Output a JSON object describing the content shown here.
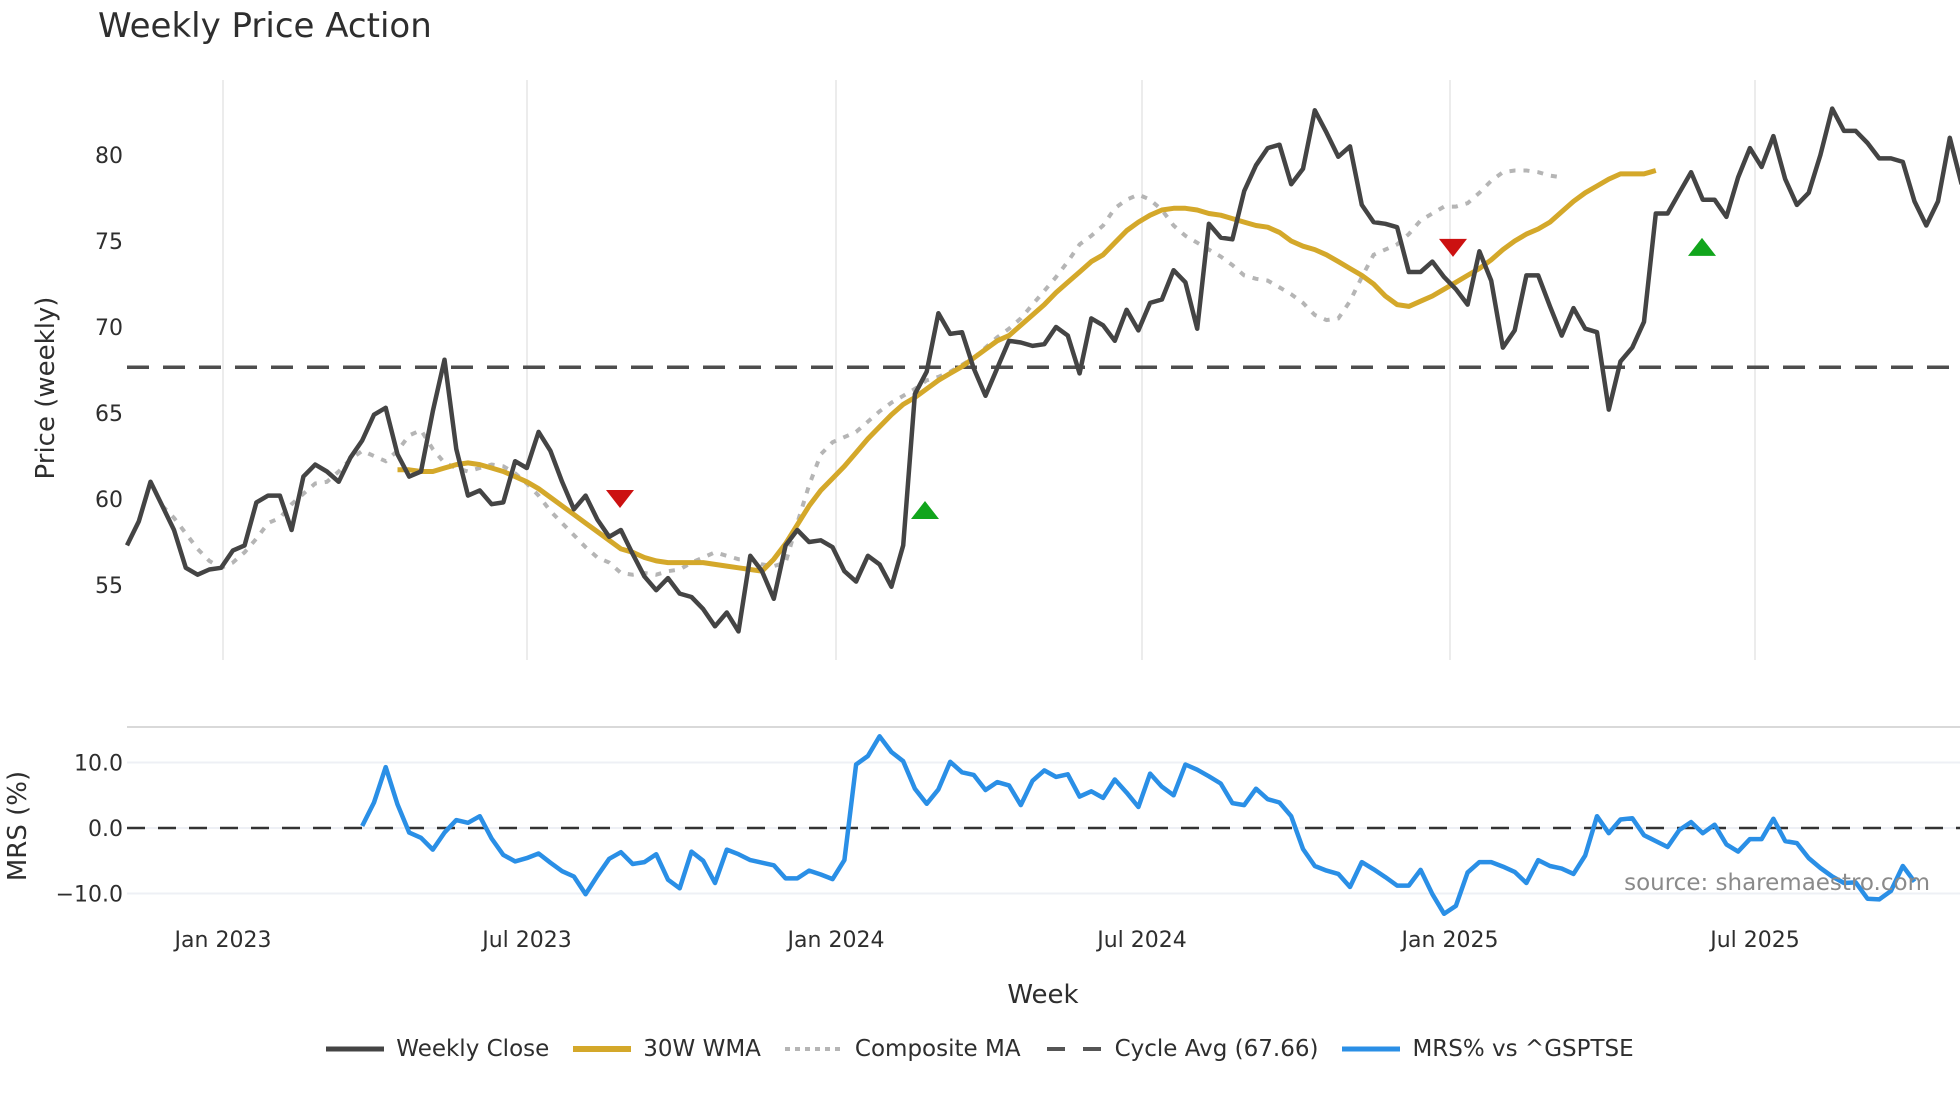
{
  "title": "Weekly Price Action",
  "watermark": "source: sharemaestro.com",
  "axes": {
    "price_ylabel": "Price (weekly)",
    "mrs_ylabel": "MRS (%)",
    "xlabel": "Week",
    "price_ticks": [
      "55",
      "60",
      "65",
      "70",
      "75",
      "80"
    ],
    "mrs_ticks": [
      "-10.0",
      "0.0",
      "10.0"
    ],
    "x_ticks": [
      "Jan 2023",
      "Jul 2023",
      "Jan 2024",
      "Jul 2024",
      "Jan 2025",
      "Jul 2025"
    ]
  },
  "legend": {
    "items": [
      {
        "label": "Weekly Close",
        "color": "#444444",
        "style": "solid"
      },
      {
        "label": "30W WMA",
        "color": "#d4a82a",
        "style": "solid"
      },
      {
        "label": "Composite MA",
        "color": "#b3b3b3",
        "style": "dotted"
      },
      {
        "label": "Cycle Avg (67.66)",
        "color": "#555555",
        "style": "dashed"
      },
      {
        "label": "MRS% vs ^GSPTSE",
        "color": "#2a8fe6",
        "style": "solid"
      }
    ]
  },
  "chart_data": [
    {
      "type": "line",
      "title": "Weekly Price Action",
      "xlabel": "Week",
      "ylabel": "Price (weekly)",
      "ylim": [
        51,
        84.5
      ],
      "x_tick_labels": [
        "Jan 2023",
        "Jul 2023",
        "Jan 2024",
        "Jul 2024",
        "Jan 2025",
        "Jul 2025"
      ],
      "y_tick_labels": [
        55,
        60,
        65,
        70,
        75,
        80
      ],
      "grid": "vertical",
      "legend_position": "bottom",
      "x_start": "2022-11 (approx)",
      "x_step": "1 week",
      "series": [
        {
          "name": "Weekly Close",
          "color": "#444444",
          "values": [
            57.3,
            58.7,
            61.0,
            59.6,
            58.2,
            56.0,
            55.6,
            55.9,
            56.0,
            57.0,
            57.3,
            59.8,
            60.2,
            60.2,
            58.2,
            61.3,
            62.0,
            61.6,
            61.0,
            62.4,
            63.4,
            64.9,
            65.3,
            62.6,
            61.3,
            61.6,
            65.1,
            68.1,
            62.9,
            60.2,
            60.5,
            59.7,
            59.8,
            62.2,
            61.8,
            63.9,
            62.8,
            61.0,
            59.4,
            60.2,
            58.8,
            57.8,
            58.2,
            56.8,
            55.5,
            54.7,
            55.4,
            54.5,
            54.3,
            53.6,
            52.6,
            53.4,
            52.3,
            56.7,
            55.8,
            54.2,
            57.3,
            58.2,
            57.5,
            57.6,
            57.2,
            55.8,
            55.2,
            56.7,
            56.2,
            54.9,
            57.3,
            66.1,
            67.4,
            70.8,
            69.6,
            69.7,
            67.6,
            66.0,
            67.6,
            69.2,
            69.1,
            68.9,
            69.0,
            70.0,
            69.5,
            67.3,
            70.5,
            70.1,
            69.2,
            71.0,
            69.8,
            71.4,
            71.6,
            73.3,
            72.6,
            69.9,
            76.0,
            75.2,
            75.1,
            77.9,
            79.4,
            80.4,
            80.6,
            78.3,
            79.2,
            82.6,
            81.3,
            79.9,
            80.5,
            77.1,
            76.1,
            76.0,
            75.8,
            73.2,
            73.2,
            73.8,
            72.9,
            72.2,
            71.3,
            74.4,
            72.7,
            68.8,
            69.8,
            73.0,
            73.0,
            71.2,
            69.5,
            71.1,
            69.9,
            69.7,
            65.2,
            68.0,
            68.8,
            70.3,
            76.6,
            76.6,
            77.8,
            79.0,
            77.4,
            77.4,
            76.4,
            78.7,
            80.4,
            79.3,
            81.1,
            78.6,
            77.1,
            77.8,
            80.0,
            82.7,
            81.4,
            81.4,
            80.7,
            79.8,
            79.8,
            79.6,
            77.3,
            75.9,
            77.3,
            81.0,
            78.3
          ]
        },
        {
          "name": "30W WMA",
          "color": "#d4a82a",
          "start_index": 23,
          "values": [
            61.7,
            61.7,
            61.6,
            61.6,
            61.8,
            62.0,
            62.1,
            62.0,
            61.8,
            61.6,
            61.3,
            61.0,
            60.6,
            60.1,
            59.6,
            59.1,
            58.6,
            58.1,
            57.6,
            57.1,
            56.9,
            56.6,
            56.4,
            56.3,
            56.3,
            56.3,
            56.3,
            56.2,
            56.1,
            56.0,
            55.9,
            55.8,
            56.5,
            57.4,
            58.5,
            59.6,
            60.5,
            61.2,
            61.9,
            62.7,
            63.5,
            64.2,
            64.9,
            65.5,
            65.9,
            66.4,
            66.9,
            67.3,
            67.7,
            68.2,
            68.7,
            69.2,
            69.5,
            70.1,
            70.7,
            71.3,
            72.0,
            72.6,
            73.2,
            73.8,
            74.2,
            74.9,
            75.6,
            76.1,
            76.5,
            76.8,
            76.9,
            76.9,
            76.8,
            76.6,
            76.5,
            76.3,
            76.1,
            75.9,
            75.8,
            75.5,
            75.0,
            74.7,
            74.5,
            74.2,
            73.8,
            73.4,
            73.0,
            72.5,
            71.8,
            71.3,
            71.2,
            71.5,
            71.8,
            72.2,
            72.6,
            73.0,
            73.4,
            73.9,
            74.5,
            75.0,
            75.4,
            75.7,
            76.1,
            76.7,
            77.3,
            77.8,
            78.2,
            78.6,
            78.9,
            78.9,
            78.9,
            79.1
          ]
        },
        {
          "name": "Composite MA",
          "color": "#b3b3b3",
          "start_index": 3,
          "values": [
            59.6,
            58.9,
            58.0,
            57.1,
            56.4,
            56.0,
            56.3,
            56.9,
            57.7,
            58.6,
            58.9,
            59.7,
            60.3,
            60.9,
            61.0,
            61.6,
            62.3,
            62.8,
            62.5,
            62.2,
            62.8,
            63.7,
            64.0,
            62.9,
            62.1,
            61.8,
            61.6,
            61.8,
            62.0,
            61.9,
            61.5,
            60.9,
            60.2,
            59.3,
            58.6,
            57.9,
            57.2,
            56.6,
            56.3,
            55.7,
            55.6,
            55.7,
            55.6,
            55.8,
            55.9,
            56.3,
            56.6,
            56.9,
            56.7,
            56.5,
            56.5,
            56.2,
            56.1,
            56.3,
            58.6,
            60.8,
            62.6,
            63.3,
            63.6,
            63.9,
            64.5,
            65.1,
            65.6,
            66.0,
            66.4,
            66.9,
            67.1,
            67.4,
            67.8,
            68.2,
            68.8,
            69.4,
            69.9,
            70.5,
            71.3,
            72.1,
            72.9,
            73.8,
            74.8,
            75.3,
            75.9,
            76.9,
            77.4,
            77.7,
            77.4,
            76.8,
            75.9,
            75.3,
            74.9,
            74.5,
            74.1,
            73.6,
            73.0,
            72.8,
            72.7,
            72.3,
            71.9,
            71.4,
            70.7,
            70.4,
            70.5,
            71.5,
            72.9,
            74.2,
            74.5,
            74.8,
            75.4,
            76.2,
            76.6,
            77.0,
            77.0,
            77.2,
            77.8,
            78.5,
            79.0,
            79.1,
            79.1,
            79.0,
            78.8,
            78.7
          ]
        },
        {
          "name": "Cycle Avg (67.66)",
          "color": "#555555",
          "style": "dashed",
          "constant": 67.66
        }
      ],
      "markers": [
        {
          "type": "sell",
          "shape": "triangle-down",
          "color": "#cc1111",
          "x_label": "Sep 2023 (approx)",
          "value": 60.0
        },
        {
          "type": "buy",
          "shape": "triangle-up",
          "color": "#11a51c",
          "x_label": "Mar 2024 (approx)",
          "value": 59.3
        },
        {
          "type": "sell",
          "shape": "triangle-down",
          "color": "#cc1111",
          "x_label": "Jan 2025 (approx)",
          "value": 74.6
        },
        {
          "type": "buy",
          "shape": "triangle-up",
          "color": "#11a51c",
          "x_label": "May 2025 (approx)",
          "value": 74.6
        }
      ]
    },
    {
      "type": "line",
      "title": "",
      "xlabel": "Week",
      "ylabel": "MRS (%)",
      "ylim": [
        -15,
        15
      ],
      "y_tick_labels": [
        -10.0,
        0.0,
        10.0
      ],
      "reference_line": 0.0,
      "series": [
        {
          "name": "MRS% vs ^GSPTSE",
          "color": "#2a8fe6",
          "start_index": 20,
          "values": [
            0.3,
            3.9,
            9.3,
            3.6,
            -0.7,
            -1.5,
            -3.3,
            -0.7,
            1.2,
            0.8,
            1.8,
            -1.6,
            -4.1,
            -5.1,
            -4.6,
            -3.9,
            -5.3,
            -6.6,
            -7.4,
            -10.1,
            -7.3,
            -4.7,
            -3.7,
            -5.5,
            -5.2,
            -4.0,
            -7.9,
            -9.2,
            -3.6,
            -5.0,
            -8.4,
            -3.3,
            -4.0,
            -4.9,
            -5.3,
            -5.7,
            -7.7,
            -7.7,
            -6.5,
            -7.1,
            -7.8,
            -4.9,
            9.7,
            11.0,
            14.0,
            11.6,
            10.2,
            6.0,
            3.7,
            5.9,
            10.1,
            8.5,
            8.1,
            5.8,
            7.0,
            6.5,
            3.5,
            7.2,
            8.8,
            7.8,
            8.2,
            4.8,
            5.6,
            4.6,
            7.4,
            5.4,
            3.2,
            8.3,
            6.3,
            5.0,
            9.7,
            8.9,
            7.9,
            6.8,
            3.8,
            3.5,
            6.0,
            4.4,
            3.9,
            1.8,
            -3.2,
            -5.8,
            -6.5,
            -7.0,
            -9.0,
            -5.2,
            -6.3,
            -7.5,
            -8.8,
            -8.8,
            -6.4,
            -10.1,
            -13.1,
            -11.9,
            -6.8,
            -5.2,
            -5.2,
            -5.9,
            -6.7,
            -8.4,
            -4.9,
            -5.8,
            -6.2,
            -7.0,
            -4.2,
            1.8,
            -0.8,
            1.3,
            1.5,
            -1.1,
            -2.0,
            -2.9,
            -0.3,
            0.9,
            -0.8,
            0.5,
            -2.5,
            -3.6,
            -1.7,
            -1.7,
            1.4,
            -2.0,
            -2.3,
            -4.6,
            -6.1,
            -7.4,
            -8.4,
            -8.3,
            -10.8,
            -10.9,
            -9.6,
            -5.8,
            -8.2
          ]
        }
      ]
    }
  ]
}
